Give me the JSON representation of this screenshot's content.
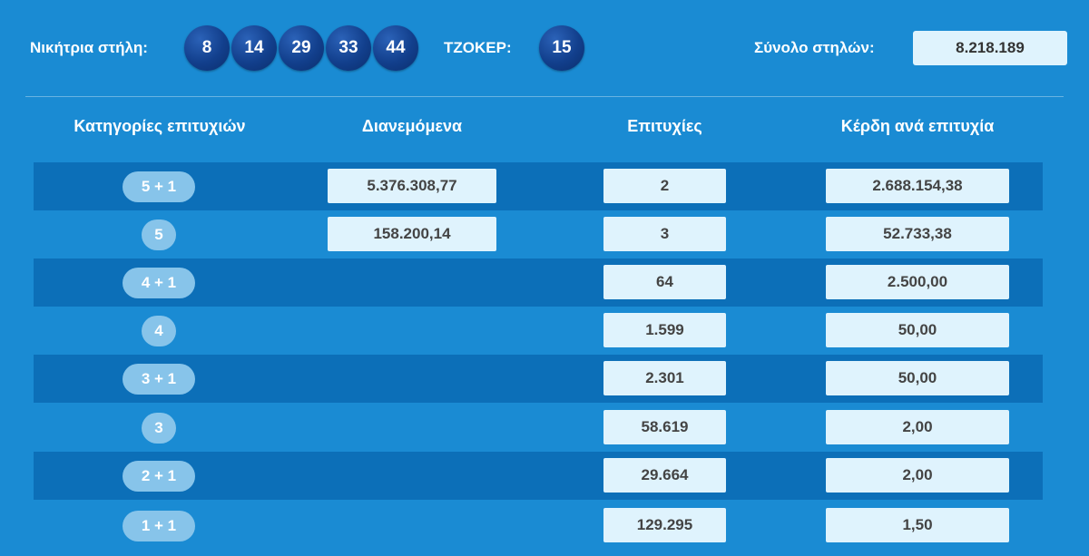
{
  "header": {
    "winning_label": "Νικήτρια στήλη:",
    "numbers": [
      "8",
      "14",
      "29",
      "33",
      "44"
    ],
    "joker_label": "ΤΖΟΚΕΡ:",
    "joker_number": "15",
    "total_label": "Σύνολο στηλών:",
    "total_value": "8.218.189"
  },
  "table": {
    "columns": [
      "Κατηγορίες επιτυχιών",
      "Διανεμόμενα",
      "Επιτυχίες",
      "Κέρδη ανά επιτυχία"
    ],
    "rows": [
      {
        "category": "5 + 1",
        "distributed": "5.376.308,77",
        "winners": "2",
        "prize": "2.688.154,38"
      },
      {
        "category": "5",
        "distributed": "158.200,14",
        "winners": "3",
        "prize": "52.733,38"
      },
      {
        "category": "4 + 1",
        "distributed": "",
        "winners": "64",
        "prize": "2.500,00"
      },
      {
        "category": "4",
        "distributed": "",
        "winners": "1.599",
        "prize": "50,00"
      },
      {
        "category": "3 + 1",
        "distributed": "",
        "winners": "2.301",
        "prize": "50,00"
      },
      {
        "category": "3",
        "distributed": "",
        "winners": "58.619",
        "prize": "2,00"
      },
      {
        "category": "2 + 1",
        "distributed": "",
        "winners": "29.664",
        "prize": "2,00"
      },
      {
        "category": "1 + 1",
        "distributed": "",
        "winners": "129.295",
        "prize": "1,50"
      }
    ]
  },
  "colors": {
    "background": "#1a8bd3",
    "stripe": "#0c6fb8",
    "ball": "#123f8c",
    "value_box": "#dff3fd",
    "pill": "#87c4ea"
  }
}
